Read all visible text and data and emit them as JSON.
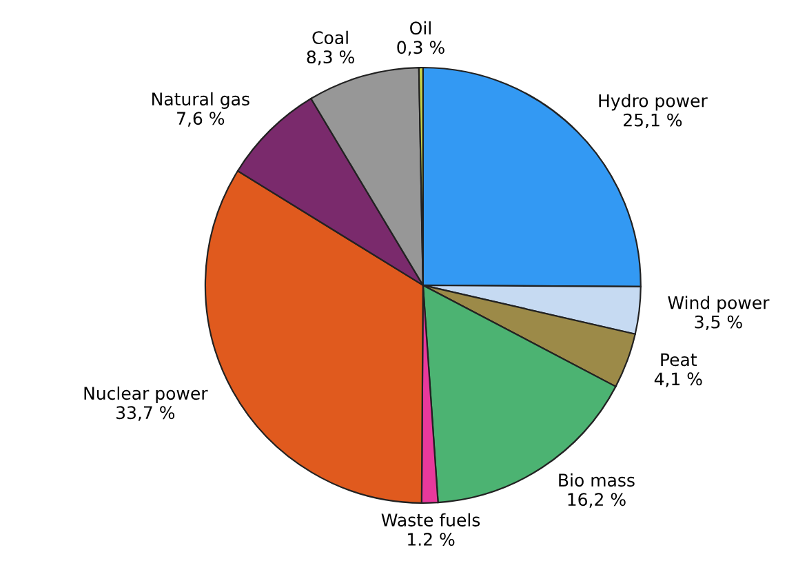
{
  "chart_data": {
    "type": "pie",
    "categories": [
      "Hydro power",
      "Wind power",
      "Peat",
      "Bio mass",
      "Waste fuels",
      "Nuclear power",
      "Natural gas",
      "Coal",
      "Oil"
    ],
    "values": [
      25.1,
      3.5,
      4.1,
      16.2,
      1.2,
      33.7,
      7.6,
      8.3,
      0.3
    ],
    "value_labels": [
      "25,1 %",
      "3,5 %",
      "4,1 %",
      "16,2 %",
      "1.2 %",
      "33,7 %",
      "7,6 %",
      "8,3 %",
      "0,3 %"
    ],
    "colors": [
      "#3399f3",
      "#c6daf2",
      "#9c8a48",
      "#4cb372",
      "#e8399c",
      "#e05a1e",
      "#7a2a6c",
      "#979797",
      "#c9d64a"
    ],
    "legend": false
  }
}
